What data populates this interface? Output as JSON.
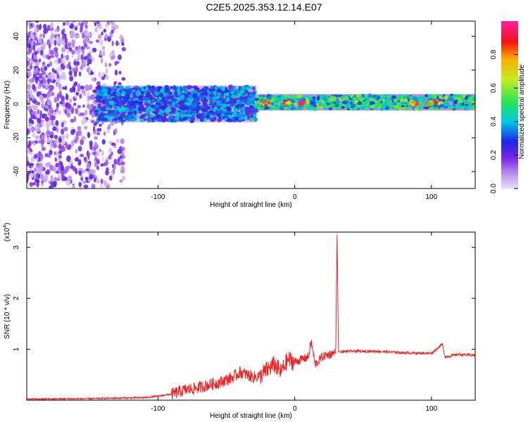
{
  "title": "C2E5.2025.353.12.14.E07",
  "colors": {
    "axes": "#000000",
    "snr_line": "#ee2222",
    "colorbar_low": "#d8ccf4",
    "colorbar_high": "#ff2a88"
  },
  "chart_data": [
    {
      "type": "heatmap",
      "name": "spectrogram",
      "xlabel": "Height of straight line (km)",
      "ylabel": "Frequency (Hz)",
      "xlim": [
        -196,
        132
      ],
      "ylim": [
        -50,
        49
      ],
      "xticks": [
        -100,
        0,
        100
      ],
      "xticklabels": [
        "-100",
        "0",
        "100"
      ],
      "yticks": [
        -40,
        -20,
        0,
        20,
        40
      ],
      "yticklabels": [
        "-40",
        "-20",
        "0",
        "20",
        "40"
      ],
      "grid": false,
      "colorbar": {
        "label": "Normalized spectral amplitude",
        "range": [
          0,
          1
        ],
        "ticks": [
          0.0,
          0.2,
          0.4,
          0.6,
          0.8
        ],
        "ticklabels": [
          "0.0",
          "0.2",
          "0.4",
          "0.6",
          "0.8"
        ]
      },
      "regions": [
        {
          "x": [
            -196,
            -125
          ],
          "freq": [
            -50,
            49
          ],
          "amplitude": 0.15,
          "description": "scattered noise"
        },
        {
          "x": [
            -145,
            -28
          ],
          "freq": [
            -10,
            10
          ],
          "amplitude": 0.35
        },
        {
          "x": [
            -28,
            132
          ],
          "freq": [
            -3,
            5
          ],
          "amplitude": 0.5
        },
        {
          "x": [
            -25,
            -18
          ],
          "freq": [
            -1,
            2
          ],
          "amplitude": 0.9
        },
        {
          "x": [
            -8,
            -4
          ],
          "freq": [
            -1,
            2
          ],
          "amplitude": 0.9
        },
        {
          "x": [
            4,
            8
          ],
          "freq": [
            -1,
            2
          ],
          "amplitude": 0.9
        },
        {
          "x": [
            85,
            90
          ],
          "freq": [
            -1,
            2
          ],
          "amplitude": 0.9
        },
        {
          "x": [
            97,
            107
          ],
          "freq": [
            -1,
            2
          ],
          "amplitude": 0.9
        }
      ]
    },
    {
      "type": "line",
      "name": "snr",
      "xlabel": "Height of straight line (km)",
      "ylabel": "SNR (10 * v/v)",
      "multiplier": "(x10",
      "multiplier_exp": "4",
      "multiplier_close": ")",
      "xlim": [
        -196,
        132
      ],
      "ylim": [
        0,
        3.3
      ],
      "xticks": [
        -100,
        0,
        100
      ],
      "xticklabels": [
        "-100",
        "0",
        "100"
      ],
      "yticks": [
        1,
        2,
        3
      ],
      "yticklabels": [
        "1",
        "2",
        "3"
      ],
      "grid": false,
      "series": [
        {
          "x": [
            -196,
            -150,
            -110,
            -100,
            -90,
            -80,
            -70,
            -60,
            -55,
            -50,
            -45,
            -40,
            -35,
            -30,
            -25,
            -20,
            -15,
            -10,
            -5,
            0,
            5,
            10,
            12,
            15,
            20,
            25,
            30,
            31,
            32,
            40,
            60,
            80,
            100,
            108,
            110,
            120,
            132
          ],
          "y": [
            0.02,
            0.03,
            0.05,
            0.08,
            0.12,
            0.2,
            0.25,
            0.32,
            0.35,
            0.4,
            0.45,
            0.55,
            0.5,
            0.45,
            0.48,
            0.6,
            0.7,
            0.55,
            0.8,
            0.75,
            0.8,
            0.85,
            1.15,
            0.7,
            0.85,
            0.9,
            0.93,
            3.3,
            0.95,
            0.96,
            0.96,
            0.93,
            0.92,
            1.1,
            0.85,
            0.9,
            0.88
          ]
        }
      ]
    }
  ]
}
